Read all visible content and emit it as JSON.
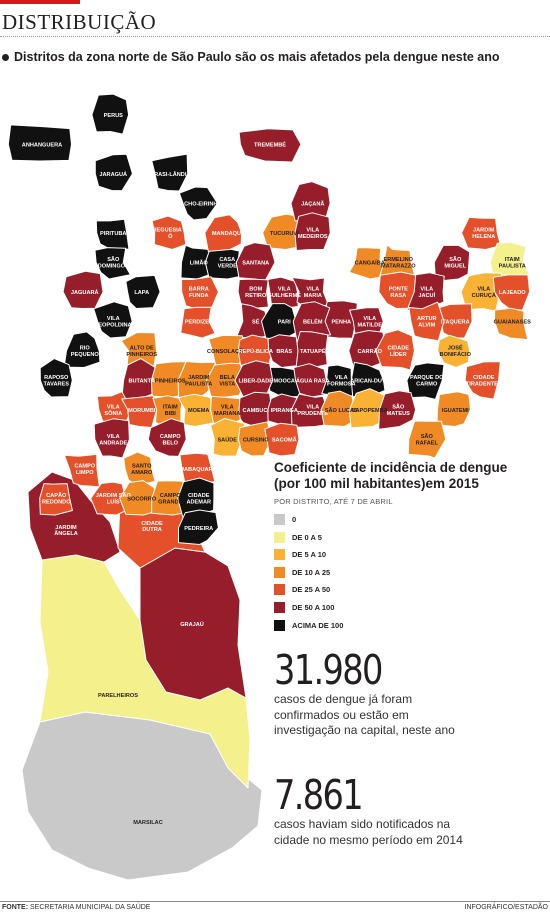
{
  "header": {
    "section_title": "DISTRIBUIÇÃO",
    "subtitle": "Distritos da zona norte de São Paulo são os mais afetados pela dengue neste ano",
    "accent_color": "#d7191c"
  },
  "colors": {
    "none": "#c9c9c9",
    "c0_5": "#f4f08c",
    "c5_10": "#f9b233",
    "c10_25": "#f08a24",
    "c25_50": "#e4502a",
    "c50_100": "#961d2a",
    "c100": "#111111",
    "border": "#ffffff"
  },
  "legend": {
    "title_line1": "Coeficiente de incidência de dengue",
    "title_line2": "(por 100 mil habitantes)em 2015",
    "note": "POR DISTRITO, ATÉ 7 DE ABRIL",
    "items": [
      {
        "label": "0",
        "color": "#c9c9c9"
      },
      {
        "label": "DE 0 A 5",
        "color": "#f4f08c"
      },
      {
        "label": "DE 5 A 10",
        "color": "#f9b233"
      },
      {
        "label": "DE 10 A 25",
        "color": "#f08a24"
      },
      {
        "label": "DE 25 A 50",
        "color": "#e4502a"
      },
      {
        "label": "DE 50 A 100",
        "color": "#961d2a"
      },
      {
        "label": "ACIMA DE 100",
        "color": "#111111"
      }
    ]
  },
  "stats": [
    {
      "number": "31.980",
      "text": "casos de dengue já foram confirmados ou estão em investigação na capital, neste ano"
    },
    {
      "number": "7.861",
      "text": "casos haviam sido notificados na cidade no mesmo período em 2014"
    }
  ],
  "footer": {
    "source_label": "FONTE:",
    "source_text": "SECRETARIA MUNICIPAL DA SAÚDE",
    "credit": "INFOGRÁFICO/ESTADÃO"
  },
  "districts": [
    {
      "name": "PERUS",
      "cls": "c100"
    },
    {
      "name": "ANHANGUERA",
      "cls": "c100"
    },
    {
      "name": "JARAGUÁ",
      "cls": "c100"
    },
    {
      "name": "BRASI-LÂNDIA",
      "cls": "c100"
    },
    {
      "name": "CACHO-EIRINHA",
      "cls": "c100"
    },
    {
      "name": "TREMEMBÉ",
      "cls": "c50_100"
    },
    {
      "name": "PIRITUBA",
      "cls": "c100"
    },
    {
      "name": "SÃO DOMINGOS",
      "cls": "c100"
    },
    {
      "name": "FREGUESIA DO Ó",
      "cls": "c25_50"
    },
    {
      "name": "LIMÃO",
      "cls": "c100"
    },
    {
      "name": "CASA VERDE",
      "cls": "c100"
    },
    {
      "name": "MANDAQUI",
      "cls": "c25_50"
    },
    {
      "name": "TUCURUVI",
      "cls": "c10_25"
    },
    {
      "name": "JAÇANÃ",
      "cls": "c50_100"
    },
    {
      "name": "SANTANA",
      "cls": "c50_100"
    },
    {
      "name": "VILA MEDEIROS",
      "cls": "c50_100"
    },
    {
      "name": "JAGUARÁ",
      "cls": "c50_100"
    },
    {
      "name": "VILA LEOPOLDINA",
      "cls": "c100"
    },
    {
      "name": "LAPA",
      "cls": "c100"
    },
    {
      "name": "BARRA FUNDA",
      "cls": "c25_50"
    },
    {
      "name": "BOM RETIRO",
      "cls": "c50_100"
    },
    {
      "name": "VILA GUILHERME",
      "cls": "c50_100"
    },
    {
      "name": "VILA MARIA",
      "cls": "c50_100"
    },
    {
      "name": "CANGAÍBA",
      "cls": "c10_25"
    },
    {
      "name": "ERMELINO MATARAZZO",
      "cls": "c10_25"
    },
    {
      "name": "JARDIM HELENA",
      "cls": "c25_50"
    },
    {
      "name": "SÃO MIGUEL",
      "cls": "c50_100"
    },
    {
      "name": "ITAIM PAULISTA",
      "cls": "c0_5"
    },
    {
      "name": "VILA JACUÍ",
      "cls": "c50_100"
    },
    {
      "name": "VILA CURUÇÁ",
      "cls": "c5_10"
    },
    {
      "name": "PENHA",
      "cls": "c50_100"
    },
    {
      "name": "PONTE RASA",
      "cls": "c25_50"
    },
    {
      "name": "LAJEADO",
      "cls": "c25_50"
    },
    {
      "name": "ITAQUERA",
      "cls": "c25_50"
    },
    {
      "name": "ARTUR ALVIM",
      "cls": "c25_50"
    },
    {
      "name": "VILA MATILDE",
      "cls": "c50_100"
    },
    {
      "name": "GUAIANASES",
      "cls": "c10_25"
    },
    {
      "name": "JOSÉ BONIFÁCIO",
      "cls": "c5_10"
    },
    {
      "name": "PERDIZES",
      "cls": "c25_50"
    },
    {
      "name": "SÉ",
      "cls": "c50_100"
    },
    {
      "name": "PARI",
      "cls": "c100"
    },
    {
      "name": "BELÉM",
      "cls": "c50_100"
    },
    {
      "name": "TATUAPÉ",
      "cls": "c50_100"
    },
    {
      "name": "CARRÃO",
      "cls": "c50_100"
    },
    {
      "name": "CIDADE LÍDER",
      "cls": "c25_50"
    },
    {
      "name": "PARQUE DO CARMO",
      "cls": "c100"
    },
    {
      "name": "CIDADE TIRADENTES",
      "cls": "c25_50"
    },
    {
      "name": "ALTO DE PINHEIROS",
      "cls": "c10_25"
    },
    {
      "name": "CONSOLAÇÃO",
      "cls": "c10_25"
    },
    {
      "name": "REPÚ-BLICA",
      "cls": "c25_50"
    },
    {
      "name": "BRÁS",
      "cls": "c50_100"
    },
    {
      "name": "MOOCA",
      "cls": "c100"
    },
    {
      "name": "ÁGUA RASA",
      "cls": "c50_100"
    },
    {
      "name": "VILA FORMOSA",
      "cls": "c100"
    },
    {
      "name": "ARICAN-DUVA",
      "cls": "c100"
    },
    {
      "name": "RIO PEQUENO",
      "cls": "c100"
    },
    {
      "name": "BUTANTÃ",
      "cls": "c50_100"
    },
    {
      "name": "PINHEIROS",
      "cls": "c10_25"
    },
    {
      "name": "JARDIM PAULISTA",
      "cls": "c10_25"
    },
    {
      "name": "BELA VISTA",
      "cls": "c10_25"
    },
    {
      "name": "LIBER-DADE",
      "cls": "c50_100"
    },
    {
      "name": "CAMBUCI",
      "cls": "c50_100"
    },
    {
      "name": "RAPOSO TAVARES",
      "cls": "c100"
    },
    {
      "name": "VILA SÔNIA",
      "cls": "c25_50"
    },
    {
      "name": "MORUMBI",
      "cls": "c25_50"
    },
    {
      "name": "ITAIM BIBI",
      "cls": "c10_25"
    },
    {
      "name": "MOEMA",
      "cls": "c5_10"
    },
    {
      "name": "VILA MARIANA",
      "cls": "c10_25"
    },
    {
      "name": "IPIRANGA",
      "cls": "c50_100"
    },
    {
      "name": "VILA PRUDENTE",
      "cls": "c50_100"
    },
    {
      "name": "SÃO LUCAS",
      "cls": "c10_25"
    },
    {
      "name": "SAPOPEMBA",
      "cls": "c5_10"
    },
    {
      "name": "SÃO MATEUS",
      "cls": "c50_100"
    },
    {
      "name": "IGUATEMI",
      "cls": "c10_25"
    },
    {
      "name": "SÃO RAFAEL",
      "cls": "c10_25"
    },
    {
      "name": "VILA ANDRADE",
      "cls": "c50_100"
    },
    {
      "name": "CAMPO BELO",
      "cls": "c50_100"
    },
    {
      "name": "SAÚDE",
      "cls": "c5_10"
    },
    {
      "name": "CURSINO",
      "cls": "c10_25"
    },
    {
      "name": "SACOMÃ",
      "cls": "c25_50"
    },
    {
      "name": "CAMPO LIMPO",
      "cls": "c25_50"
    },
    {
      "name": "SANTO AMARO",
      "cls": "c10_25"
    },
    {
      "name": "JABAQUARA",
      "cls": "c25_50"
    },
    {
      "name": "CAPÃO REDONDO",
      "cls": "c25_50"
    },
    {
      "name": "JARDIM SÃO LUÍS",
      "cls": "c25_50"
    },
    {
      "name": "SOCORRO",
      "cls": "c10_25"
    },
    {
      "name": "CAMPO GRANDE",
      "cls": "c10_25"
    },
    {
      "name": "CIDADE ADEMAR",
      "cls": "c100"
    },
    {
      "name": "PEDREIRA",
      "cls": "c100"
    },
    {
      "name": "JARDIM ÂNGELA",
      "cls": "c50_100"
    },
    {
      "name": "CIDADE DUTRA",
      "cls": "c25_50"
    },
    {
      "name": "GRAJAÚ",
      "cls": "c50_100"
    },
    {
      "name": "PARELHEIROS",
      "cls": "c0_5"
    },
    {
      "name": "MARSILAC",
      "cls": "none"
    }
  ]
}
